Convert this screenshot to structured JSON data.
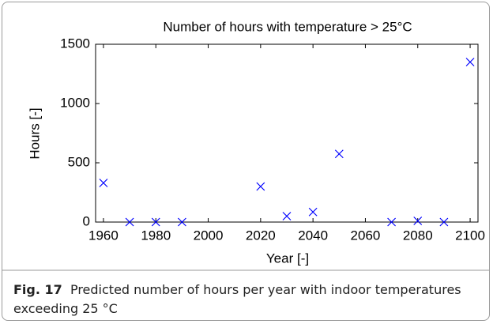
{
  "chart_data": {
    "type": "scatter",
    "title": "Number of hours with temperature > 25°C",
    "x_label": "Year [-]",
    "y_label": "Hours [-]",
    "x": [
      1960,
      1970,
      1980,
      1990,
      2020,
      2030,
      2040,
      2050,
      2070,
      2080,
      2090,
      2100
    ],
    "values": [
      330,
      0,
      0,
      0,
      300,
      50,
      85,
      575,
      0,
      10,
      0,
      1350
    ],
    "color": "#0000ff",
    "marker": "x",
    "xlim": [
      1957,
      2103
    ],
    "xticks": [
      1960,
      1980,
      2000,
      2020,
      2040,
      2060,
      2080,
      2100
    ],
    "ylim": [
      0,
      1500
    ],
    "yticks": [
      0,
      500,
      1000,
      1500
    ]
  },
  "caption": {
    "label": "Fig. 17",
    "text": "Predicted number of hours per year with indoor temperatures exceeding 25 °C"
  }
}
